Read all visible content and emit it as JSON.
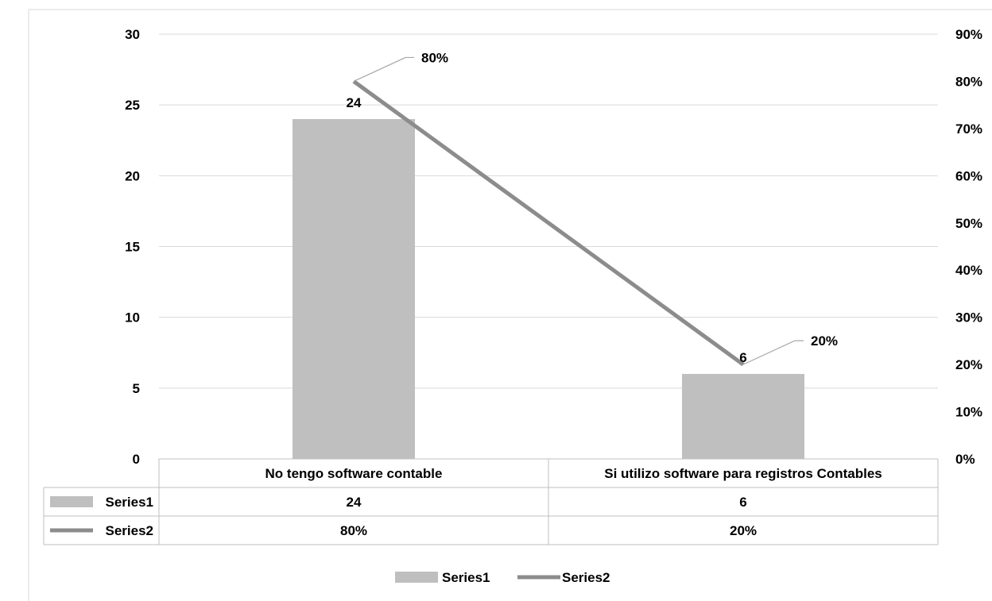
{
  "chart_data": {
    "type": "bar",
    "categories": [
      "No tengo software contable",
      "Si utilizo software para registros Contables"
    ],
    "series": [
      {
        "name": "Series1",
        "kind": "bar",
        "axis": "left",
        "values": [
          24,
          6
        ],
        "value_labels": [
          "24",
          "6"
        ],
        "color": "#bfbfbf"
      },
      {
        "name": "Series2",
        "kind": "line",
        "axis": "right",
        "values": [
          0.8,
          0.2
        ],
        "value_labels": [
          "80%",
          "20%"
        ],
        "color": "#8c8c8c"
      }
    ],
    "y_left": {
      "min": 0,
      "max": 30,
      "step": 5,
      "ticks": [
        "0",
        "5",
        "10",
        "15",
        "20",
        "25",
        "30"
      ]
    },
    "y_right": {
      "min": 0,
      "max": 0.9,
      "step": 0.1,
      "ticks": [
        "0%",
        "10%",
        "20%",
        "30%",
        "40%",
        "50%",
        "60%",
        "70%",
        "80%",
        "90%"
      ]
    },
    "grid": true,
    "data_table": true,
    "legend_position": "bottom",
    "title": "",
    "xlabel": "",
    "ylabel": ""
  }
}
